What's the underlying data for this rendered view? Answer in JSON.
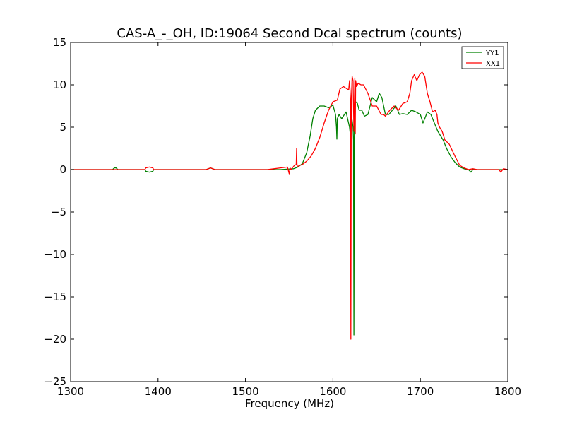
{
  "chart_data": {
    "type": "line",
    "title": "CAS-A_-_OH, ID:19064 Second Dcal spectrum (counts)",
    "xlabel": "Frequency (MHz)",
    "ylabel": "",
    "xlim": [
      1300,
      1800
    ],
    "ylim": [
      -25,
      15
    ],
    "xticks": [
      1300,
      1400,
      1500,
      1600,
      1700,
      1800
    ],
    "yticks": [
      -25,
      -20,
      -15,
      -10,
      -5,
      0,
      5,
      10,
      15
    ],
    "xtick_labels": [
      "1300",
      "1400",
      "1500",
      "1600",
      "1700",
      "1800"
    ],
    "ytick_labels": [
      "−25",
      "−20",
      "−15",
      "−10",
      "−5",
      "0",
      "5",
      "10",
      "15"
    ],
    "grid": false,
    "legend_position": "top-right",
    "series": [
      {
        "name": "YY1",
        "color": "#008000",
        "x": [
          1300,
          1348,
          1350,
          1352,
          1354,
          1385,
          1386,
          1390,
          1394,
          1395,
          1455,
          1460,
          1465,
          1520,
          1540,
          1555,
          1560,
          1565,
          1570,
          1574,
          1577,
          1580,
          1585,
          1590,
          1595,
          1600,
          1603,
          1604,
          1604.5,
          1605,
          1607,
          1610,
          1615,
          1619,
          1620,
          1621,
          1622,
          1623,
          1623.5,
          1624,
          1624.5,
          1625,
          1626,
          1628,
          1630,
          1633,
          1636,
          1640,
          1645,
          1650,
          1653,
          1656,
          1660,
          1664,
          1668,
          1672,
          1676,
          1680,
          1685,
          1690,
          1695,
          1700,
          1703,
          1705,
          1708,
          1712,
          1716,
          1720,
          1723,
          1726,
          1730,
          1735,
          1740,
          1745,
          1750,
          1755,
          1758,
          1760,
          1765,
          1790,
          1800
        ],
        "y": [
          0,
          0,
          0.2,
          0.2,
          0,
          0,
          -0.2,
          -0.3,
          -0.2,
          0,
          0,
          0.2,
          0,
          0,
          0,
          0.1,
          0.3,
          0.7,
          2.0,
          4.0,
          6.0,
          7.0,
          7.5,
          7.5,
          7.3,
          7.6,
          6.5,
          5.0,
          3.6,
          6.0,
          6.5,
          6.0,
          6.8,
          5.0,
          4.0,
          6.5,
          5.8,
          5.0,
          3.5,
          -19.5,
          5.0,
          7.5,
          8.0,
          7.8,
          7.0,
          7.0,
          6.3,
          6.5,
          8.5,
          8.0,
          9.0,
          8.5,
          6.5,
          6.5,
          7.0,
          7.5,
          6.5,
          6.6,
          6.5,
          7.0,
          6.8,
          6.5,
          5.5,
          6.0,
          6.8,
          6.5,
          5.5,
          4.5,
          4.0,
          3.5,
          2.5,
          1.5,
          0.8,
          0.3,
          0.1,
          0,
          -0.3,
          0,
          0,
          0,
          0
        ]
      },
      {
        "name": "XX1",
        "color": "#ff0000",
        "x": [
          1300,
          1385,
          1386,
          1390,
          1394,
          1395,
          1455,
          1460,
          1465,
          1525,
          1540,
          1548,
          1550,
          1551,
          1552,
          1556,
          1558,
          1558.5,
          1559,
          1560,
          1565,
          1570,
          1575,
          1580,
          1585,
          1590,
          1595,
          1600,
          1605,
          1608,
          1612,
          1615,
          1618,
          1619,
          1620,
          1620.5,
          1621,
          1622,
          1623,
          1624,
          1625,
          1625.5,
          1626,
          1627,
          1629,
          1632,
          1635,
          1640,
          1645,
          1650,
          1655,
          1658,
          1660,
          1665,
          1670,
          1675,
          1680,
          1685,
          1688,
          1690,
          1693,
          1696,
          1699,
          1702,
          1705,
          1708,
          1711,
          1714,
          1717,
          1719,
          1720,
          1722,
          1725,
          1728,
          1733,
          1740,
          1745,
          1750,
          1755,
          1760,
          1765,
          1790,
          1792,
          1795,
          1800
        ],
        "y": [
          0,
          0,
          0.2,
          0.3,
          0.2,
          0,
          0,
          0.2,
          0,
          0,
          0.2,
          0.3,
          -0.5,
          0.2,
          0,
          0.5,
          0.6,
          2.5,
          0.4,
          0.4,
          0.6,
          1.0,
          1.6,
          2.5,
          3.8,
          5.5,
          7.0,
          8.0,
          8.2,
          9.5,
          9.8,
          9.6,
          9.4,
          10.5,
          8.5,
          -20.0,
          8.0,
          11.0,
          10.5,
          4.5,
          10.8,
          4.2,
          10.5,
          9.8,
          10.2,
          10.0,
          10.0,
          9.0,
          7.5,
          7.5,
          6.5,
          6.5,
          6.3,
          7.0,
          7.5,
          7.0,
          7.8,
          8.0,
          9.0,
          10.5,
          11.2,
          10.5,
          11.2,
          11.5,
          11.0,
          9.0,
          8.0,
          6.8,
          7.0,
          6.5,
          5.5,
          5.0,
          4.5,
          3.5,
          3.0,
          1.5,
          0.5,
          0.2,
          0,
          0.1,
          0,
          0,
          -0.3,
          0.1,
          0
        ]
      }
    ]
  }
}
